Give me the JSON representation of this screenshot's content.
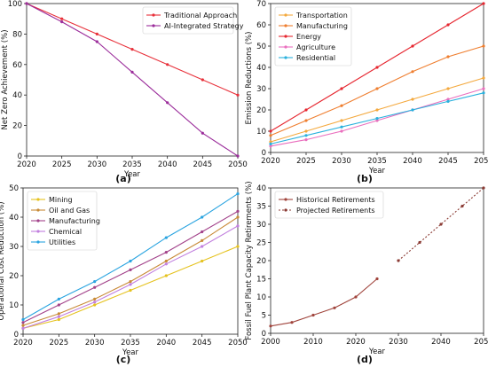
{
  "chart_data": [
    {
      "type": "line",
      "panel_label": "(a)",
      "xlabel": "Year",
      "ylabel": "Net Zero Achievement (%)",
      "x": [
        2020,
        2025,
        2030,
        2035,
        2040,
        2045,
        2050
      ],
      "xlim": [
        2020,
        2050
      ],
      "ylim": [
        0,
        100
      ],
      "xticks": [
        2020,
        2025,
        2030,
        2035,
        2040,
        2045,
        2050
      ],
      "yticks": [
        0,
        20,
        40,
        60,
        80,
        100
      ],
      "legend_position": "top-right",
      "grid": false,
      "series": [
        {
          "name": "Traditional Approach",
          "color": "#e8303a",
          "values": [
            100,
            90,
            80,
            70,
            60,
            50,
            40
          ]
        },
        {
          "name": "AI-Integrated Strategy",
          "color": "#9b2d9b",
          "values": [
            100,
            88,
            75,
            55,
            35,
            15,
            0
          ]
        }
      ]
    },
    {
      "type": "line",
      "panel_label": "(b)",
      "xlabel": "Year",
      "ylabel": "Emission Reductions (%)",
      "x": [
        2020,
        2025,
        2030,
        2035,
        2040,
        2045,
        2050
      ],
      "xlim": [
        2020,
        2050
      ],
      "ylim": [
        0,
        70
      ],
      "xticks": [
        2020,
        2025,
        2030,
        2035,
        2040,
        2045,
        2050
      ],
      "yticks": [
        0,
        10,
        20,
        30,
        40,
        50,
        60,
        70
      ],
      "legend_position": "top-left",
      "grid": false,
      "series": [
        {
          "name": "Transportation",
          "color": "#f4a93e",
          "values": [
            5,
            10,
            15,
            20,
            25,
            30,
            35
          ]
        },
        {
          "name": "Manufacturing",
          "color": "#ef7e2f",
          "values": [
            8,
            15,
            22,
            30,
            38,
            45,
            50
          ]
        },
        {
          "name": "Energy",
          "color": "#e6262f",
          "values": [
            10,
            20,
            30,
            40,
            50,
            60,
            70
          ]
        },
        {
          "name": "Agriculture",
          "color": "#ea6fbe",
          "values": [
            3,
            6,
            10,
            15,
            20,
            25,
            30
          ]
        },
        {
          "name": "Residential",
          "color": "#2ab1dd",
          "values": [
            4,
            8,
            12,
            16,
            20,
            24,
            28
          ]
        }
      ]
    },
    {
      "type": "line",
      "panel_label": "(c)",
      "xlabel": "Year",
      "ylabel": "Operational Cost Reduction (%)",
      "x": [
        2020,
        2025,
        2030,
        2035,
        2040,
        2045,
        2050
      ],
      "xlim": [
        2020,
        2050
      ],
      "ylim": [
        0,
        50
      ],
      "xticks": [
        2020,
        2025,
        2030,
        2035,
        2040,
        2045,
        2050
      ],
      "yticks": [
        0,
        10,
        20,
        30,
        40,
        50
      ],
      "legend_position": "top-left",
      "grid": false,
      "series": [
        {
          "name": "Mining",
          "color": "#e5c21e",
          "values": [
            2,
            5,
            10,
            15,
            20,
            25,
            30
          ]
        },
        {
          "name": "Oil and Gas",
          "color": "#c88a37",
          "values": [
            3,
            7,
            12,
            18,
            25,
            32,
            40
          ]
        },
        {
          "name": "Manufacturing",
          "color": "#a2428a",
          "values": [
            4,
            10,
            16,
            22,
            28,
            35,
            42
          ]
        },
        {
          "name": "Chemical",
          "color": "#c17fde",
          "values": [
            2,
            6,
            11,
            17,
            24,
            30,
            37
          ]
        },
        {
          "name": "Utilities",
          "color": "#2aa4e0",
          "values": [
            5,
            12,
            18,
            25,
            33,
            40,
            48
          ]
        }
      ]
    },
    {
      "type": "line",
      "panel_label": "(d)",
      "xlabel": "Year",
      "ylabel": "Fossil Fuel Plant Capacity Retirements (%)",
      "xlim": [
        2000,
        2050
      ],
      "ylim": [
        0,
        40
      ],
      "xticks": [
        2000,
        2010,
        2020,
        2030,
        2040,
        2050
      ],
      "yticks": [
        0,
        5,
        10,
        15,
        20,
        25,
        30,
        35,
        40
      ],
      "legend_position": "top-left",
      "grid": false,
      "series": [
        {
          "name": "Historical Retirements",
          "color": "#a0443c",
          "dash": false,
          "x": [
            2000,
            2005,
            2010,
            2015,
            2020,
            2025
          ],
          "values": [
            2,
            3,
            5,
            7,
            10,
            15
          ]
        },
        {
          "name": "Projected Retirements",
          "color": "#8b3b34",
          "dash": true,
          "x": [
            2030,
            2035,
            2040,
            2045,
            2050
          ],
          "values": [
            20,
            25,
            30,
            35,
            40
          ]
        }
      ]
    }
  ]
}
